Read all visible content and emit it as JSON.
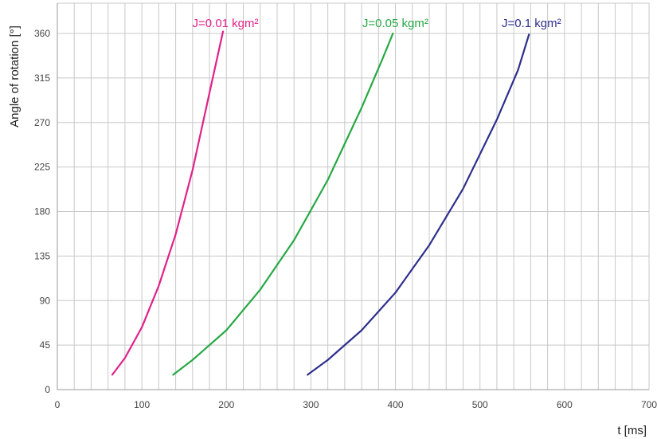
{
  "chart_data": {
    "type": "line",
    "title": "",
    "xlabel": "t [ms]",
    "ylabel": "Angle of rotation [°]",
    "xlim": [
      0,
      700
    ],
    "ylim": [
      0,
      360
    ],
    "x_ticks": [
      0,
      100,
      200,
      300,
      400,
      500,
      600,
      700
    ],
    "y_ticks": [
      0,
      45,
      90,
      135,
      180,
      225,
      270,
      315,
      360
    ],
    "grid": true,
    "legend": "labels above curves",
    "series": [
      {
        "name": "J=0.01 kgm²",
        "color": "#e0218a",
        "points": [
          [
            65,
            15
          ],
          [
            80,
            32
          ],
          [
            100,
            63
          ],
          [
            120,
            105
          ],
          [
            140,
            157
          ],
          [
            160,
            222
          ],
          [
            180,
            300
          ],
          [
            196,
            362
          ]
        ]
      },
      {
        "name": "J=0.05 kgm²",
        "color": "#27a844",
        "points": [
          [
            137,
            15
          ],
          [
            160,
            30
          ],
          [
            200,
            60
          ],
          [
            240,
            101
          ],
          [
            280,
            151
          ],
          [
            320,
            212
          ],
          [
            360,
            285
          ],
          [
            385,
            335
          ],
          [
            397,
            360
          ]
        ]
      },
      {
        "name": "J=0.1 kgm²",
        "color": "#2e2f8c",
        "points": [
          [
            296,
            15
          ],
          [
            320,
            30
          ],
          [
            360,
            60
          ],
          [
            400,
            98
          ],
          [
            440,
            146
          ],
          [
            480,
            203
          ],
          [
            520,
            273
          ],
          [
            545,
            323
          ],
          [
            558,
            359
          ]
        ]
      }
    ]
  }
}
